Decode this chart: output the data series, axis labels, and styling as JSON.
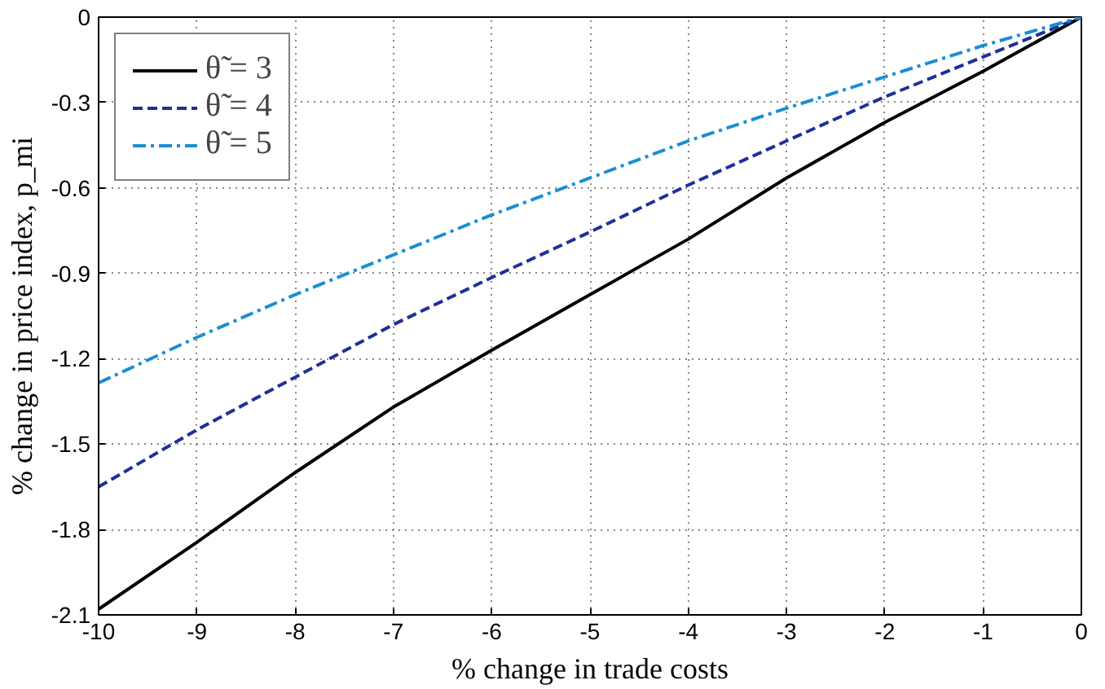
{
  "chart_data": {
    "type": "line",
    "xlabel": "% change in trade costs",
    "ylabel": "% change in price index, p_mi",
    "x": [
      -10,
      -9,
      -8,
      -7,
      -6,
      -5,
      -4,
      -3,
      -2,
      -1,
      0
    ],
    "series": [
      {
        "name": "θ̃ = 3",
        "color": "#000000",
        "line_style": "solid",
        "values": [
          -2.08,
          -1.845,
          -1.6,
          -1.37,
          -1.17,
          -0.975,
          -0.78,
          -0.565,
          -0.37,
          -0.19,
          0
        ]
      },
      {
        "name": "θ̃ = 4",
        "color": "#1f2f9a",
        "line_style": "dashed",
        "values": [
          -1.65,
          -1.45,
          -1.265,
          -1.08,
          -0.915,
          -0.755,
          -0.59,
          -0.435,
          -0.28,
          -0.14,
          0
        ]
      },
      {
        "name": "θ̃ = 5",
        "color": "#1a8fd0",
        "line_style": "dashdot",
        "values": [
          -1.285,
          -1.125,
          -0.975,
          -0.835,
          -0.695,
          -0.565,
          -0.435,
          -0.32,
          -0.21,
          -0.1,
          0
        ]
      }
    ],
    "xlim": [
      -10,
      0
    ],
    "ylim": [
      -2.1,
      0
    ],
    "xticks": [
      -10,
      -9,
      -8,
      -7,
      -6,
      -5,
      -4,
      -3,
      -2,
      -1,
      0
    ],
    "yticks": [
      -2.1,
      -1.8,
      -1.5,
      -1.2,
      -0.9,
      -0.6,
      -0.3,
      0
    ],
    "grid": true,
    "legend": "top left",
    "marker": "none"
  }
}
